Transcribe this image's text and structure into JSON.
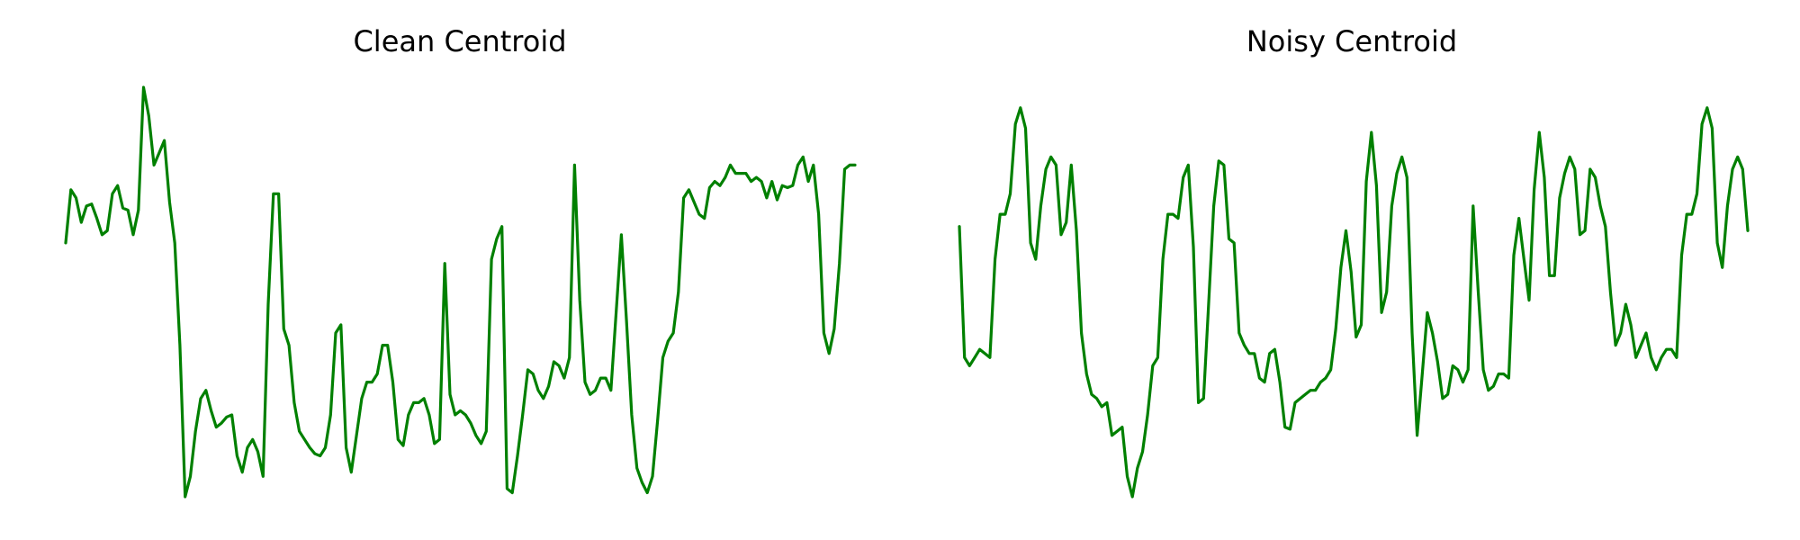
{
  "chart_data": [
    {
      "type": "line",
      "title": "Clean Centroid",
      "xlabel": "",
      "ylabel": "",
      "axes_visible": false,
      "grid": false,
      "line_color": "#008000",
      "ylim": [
        0,
        1
      ],
      "y": [
        0.62,
        0.75,
        0.73,
        0.67,
        0.71,
        0.715,
        0.68,
        0.64,
        0.65,
        0.74,
        0.76,
        0.705,
        0.7,
        0.64,
        0.7,
        1.0,
        0.93,
        0.81,
        0.84,
        0.87,
        0.72,
        0.62,
        0.37,
        0.0,
        0.05,
        0.16,
        0.24,
        0.26,
        0.21,
        0.17,
        0.18,
        0.195,
        0.2,
        0.1,
        0.06,
        0.12,
        0.14,
        0.11,
        0.05,
        0.47,
        0.74,
        0.74,
        0.41,
        0.37,
        0.23,
        0.16,
        0.14,
        0.12,
        0.105,
        0.1,
        0.12,
        0.2,
        0.4,
        0.42,
        0.12,
        0.06,
        0.15,
        0.24,
        0.28,
        0.28,
        0.3,
        0.37,
        0.37,
        0.28,
        0.14,
        0.125,
        0.2,
        0.23,
        0.23,
        0.24,
        0.2,
        0.13,
        0.14,
        0.57,
        0.25,
        0.2,
        0.21,
        0.2,
        0.18,
        0.15,
        0.13,
        0.16,
        0.58,
        0.63,
        0.66,
        0.02,
        0.01,
        0.1,
        0.2,
        0.31,
        0.3,
        0.26,
        0.24,
        0.27,
        0.33,
        0.32,
        0.29,
        0.34,
        0.81,
        0.48,
        0.28,
        0.25,
        0.26,
        0.29,
        0.29,
        0.26,
        0.45,
        0.64,
        0.43,
        0.2,
        0.07,
        0.035,
        0.01,
        0.05,
        0.19,
        0.34,
        0.38,
        0.4,
        0.5,
        0.73,
        0.75,
        0.72,
        0.69,
        0.68,
        0.755,
        0.77,
        0.76,
        0.78,
        0.81,
        0.79,
        0.79,
        0.79,
        0.77,
        0.78,
        0.77,
        0.73,
        0.77,
        0.725,
        0.76,
        0.755,
        0.76,
        0.81,
        0.83,
        0.77,
        0.81,
        0.69,
        0.4,
        0.35,
        0.41,
        0.57,
        0.8,
        0.81,
        0.81
      ]
    },
    {
      "type": "line",
      "title": "Noisy Centroid",
      "xlabel": "",
      "ylabel": "",
      "axes_visible": false,
      "grid": false,
      "line_color": "#008000",
      "ylim": [
        0,
        1
      ],
      "y": [
        0.66,
        0.34,
        0.32,
        0.34,
        0.36,
        0.35,
        0.34,
        0.58,
        0.69,
        0.69,
        0.74,
        0.91,
        0.95,
        0.9,
        0.62,
        0.58,
        0.71,
        0.8,
        0.83,
        0.81,
        0.64,
        0.67,
        0.81,
        0.65,
        0.4,
        0.3,
        0.25,
        0.24,
        0.22,
        0.23,
        0.15,
        0.16,
        0.17,
        0.05,
        0.0,
        0.07,
        0.11,
        0.2,
        0.32,
        0.34,
        0.58,
        0.69,
        0.69,
        0.68,
        0.78,
        0.81,
        0.61,
        0.23,
        0.24,
        0.47,
        0.71,
        0.82,
        0.81,
        0.63,
        0.62,
        0.4,
        0.37,
        0.35,
        0.35,
        0.29,
        0.28,
        0.35,
        0.36,
        0.28,
        0.17,
        0.165,
        0.23,
        0.24,
        0.25,
        0.26,
        0.26,
        0.28,
        0.29,
        0.31,
        0.41,
        0.56,
        0.65,
        0.55,
        0.39,
        0.42,
        0.77,
        0.89,
        0.76,
        0.45,
        0.5,
        0.71,
        0.79,
        0.83,
        0.78,
        0.4,
        0.15,
        0.3,
        0.45,
        0.4,
        0.33,
        0.24,
        0.25,
        0.32,
        0.31,
        0.28,
        0.31,
        0.71,
        0.5,
        0.31,
        0.26,
        0.27,
        0.3,
        0.3,
        0.29,
        0.59,
        0.68,
        0.58,
        0.48,
        0.75,
        0.89,
        0.78,
        0.54,
        0.54,
        0.73,
        0.79,
        0.83,
        0.8,
        0.64,
        0.65,
        0.8,
        0.78,
        0.71,
        0.66,
        0.5,
        0.37,
        0.4,
        0.47,
        0.42,
        0.34,
        0.37,
        0.4,
        0.34,
        0.31,
        0.34,
        0.36,
        0.36,
        0.34,
        0.59,
        0.69,
        0.69,
        0.74,
        0.91,
        0.95,
        0.9,
        0.62,
        0.56,
        0.71,
        0.8,
        0.83,
        0.8,
        0.65
      ]
    }
  ]
}
